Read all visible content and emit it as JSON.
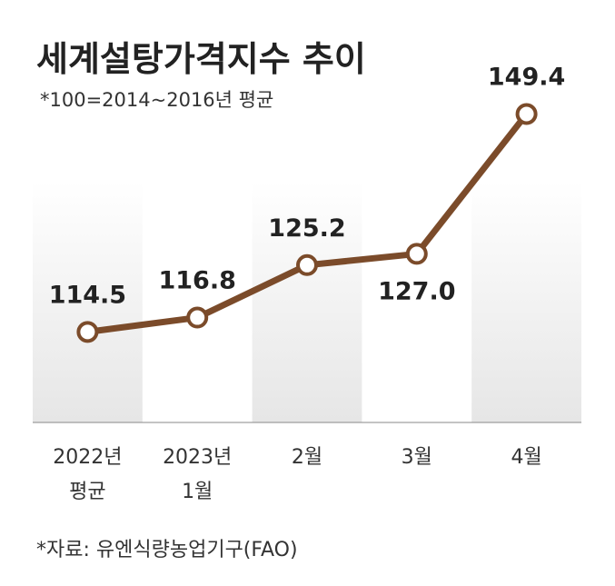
{
  "chart_data": {
    "type": "line",
    "title": "세계설탕가격지수 추이",
    "subtitle": "*100=2014~2016년 평균",
    "source": "*자료: 유엔식량농업기구(FAO)",
    "categories": [
      "2022년\n평균",
      "2023년\n1월",
      "2월",
      "3월",
      "4월"
    ],
    "values": [
      114.5,
      116.8,
      125.2,
      127.0,
      149.4
    ],
    "value_labels": [
      "114.5",
      "116.8",
      "125.2",
      "127.0",
      "149.4"
    ],
    "color": "#7b4b2a",
    "ylim": [
      100,
      155
    ]
  }
}
